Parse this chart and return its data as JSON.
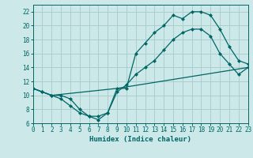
{
  "xlabel": "Humidex (Indice chaleur)",
  "bg_color": "#cce8e8",
  "grid_color": "#aacece",
  "line_color": "#006666",
  "xlim": [
    0,
    23
  ],
  "ylim": [
    6,
    23
  ],
  "xticks": [
    0,
    1,
    2,
    3,
    4,
    5,
    6,
    7,
    8,
    9,
    10,
    11,
    12,
    13,
    14,
    15,
    16,
    17,
    18,
    19,
    20,
    21,
    22,
    23
  ],
  "yticks": [
    6,
    8,
    10,
    12,
    14,
    16,
    18,
    20,
    22
  ],
  "line1_x": [
    0,
    1,
    2,
    3,
    4,
    5,
    6,
    7,
    8,
    9,
    10,
    11,
    12,
    13,
    14,
    15,
    16,
    17,
    18,
    19,
    20,
    21,
    22,
    23
  ],
  "line1_y": [
    11,
    10.5,
    10,
    9.5,
    8.5,
    7.5,
    7,
    7,
    7.5,
    11,
    11,
    16,
    17.5,
    19,
    20,
    21.5,
    21,
    22,
    22,
    21.5,
    19.5,
    17,
    15,
    14.5
  ],
  "line2_x": [
    0,
    1,
    2,
    3,
    4,
    5,
    6,
    7,
    8,
    9,
    10,
    11,
    12,
    13,
    14,
    15,
    16,
    17,
    18,
    19,
    20,
    21,
    22,
    23
  ],
  "line2_y": [
    11,
    10.5,
    10,
    10,
    9.5,
    8,
    7,
    6.5,
    7.5,
    10.5,
    11.5,
    13,
    14,
    15,
    16.5,
    18,
    19,
    19.5,
    19.5,
    18.5,
    16,
    14.5,
    13,
    14
  ],
  "line3_x": [
    0,
    2,
    9,
    23
  ],
  "line3_y": [
    11,
    10,
    11,
    14
  ]
}
